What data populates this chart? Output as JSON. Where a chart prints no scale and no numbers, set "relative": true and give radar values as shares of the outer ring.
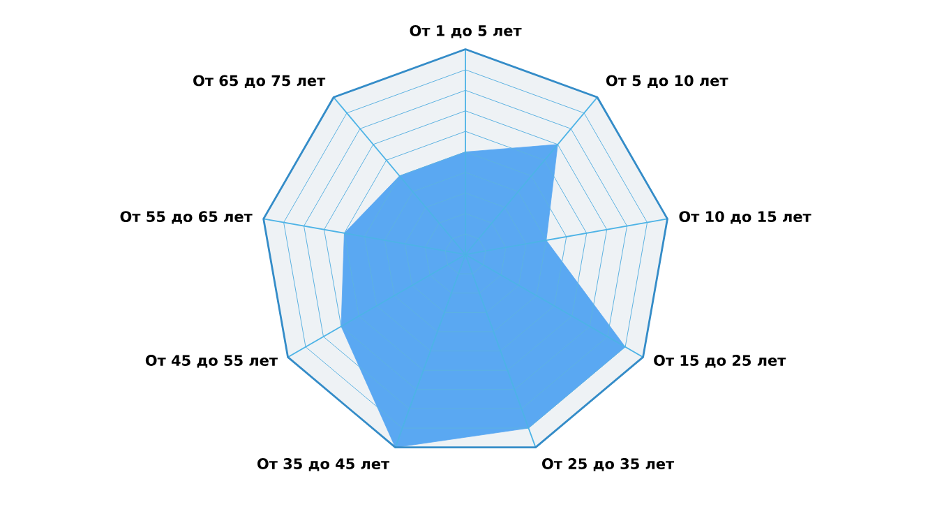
{
  "chart_data": {
    "type": "radar",
    "relative": true,
    "grid": true,
    "categories": [
      "От 1 до 5 лет",
      "От 5 до 10 лет",
      "От 10 до 15 лет",
      "От 15 до 25 лет",
      "От 25 до 35 лет",
      "От 35 до 45 лет",
      "От 45 до 55 лет",
      "От 55 до 65 лет",
      "От 65 до 75 лет"
    ],
    "series": [
      {
        "color": "#5aa8f2",
        "values": [
          0.5,
          0.7,
          0.4,
          0.9,
          0.9,
          1,
          0.7,
          0.6,
          0.5
        ]
      }
    ]
  }
}
